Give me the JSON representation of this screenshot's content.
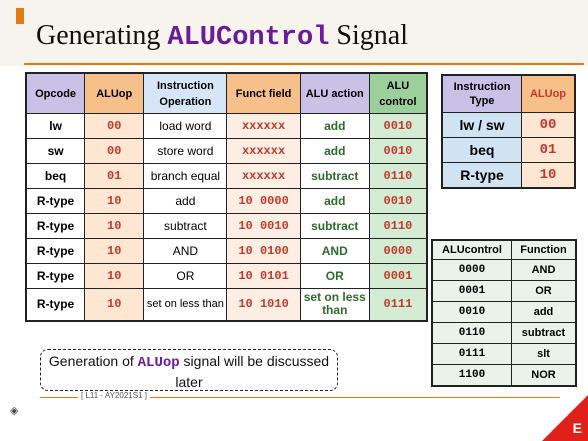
{
  "title": {
    "prefix": "Generating ",
    "code": "ALUControl",
    "suffix": " Signal"
  },
  "main_table": {
    "headers": [
      "Opcode",
      "ALUop",
      "Instruction Operation",
      "Funct field",
      "ALU action",
      "ALU control"
    ],
    "rows": [
      {
        "opcode": "lw",
        "aluop": "00",
        "operation": "load word",
        "funct": "xxxxxx",
        "action": "add",
        "control": "0010"
      },
      {
        "opcode": "sw",
        "aluop": "00",
        "operation": "store word",
        "funct": "xxxxxx",
        "action": "add",
        "control": "0010"
      },
      {
        "opcode": "beq",
        "aluop": "01",
        "operation": "branch equal",
        "funct": "xxxxxx",
        "action": "subtract",
        "control": "0110"
      },
      {
        "opcode": "R-type",
        "aluop": "10",
        "operation": "add",
        "funct": "10 0000",
        "action": "add",
        "control": "0010"
      },
      {
        "opcode": "R-type",
        "aluop": "10",
        "operation": "subtract",
        "funct": "10 0010",
        "action": "subtract",
        "control": "0110"
      },
      {
        "opcode": "R-type",
        "aluop": "10",
        "operation": "AND",
        "funct": "10 0100",
        "action": "AND",
        "control": "0000"
      },
      {
        "opcode": "R-type",
        "aluop": "10",
        "operation": "OR",
        "funct": "10 0101",
        "action": "OR",
        "control": "0001"
      },
      {
        "opcode": "R-type",
        "aluop": "10",
        "operation": "set on less than",
        "funct": "10 1010",
        "action": "set on less than",
        "control": "0111"
      }
    ]
  },
  "type_table": {
    "headers": [
      "Instruction Type",
      "ALUop"
    ],
    "rows": [
      {
        "type": "lw / sw",
        "aluop": "00"
      },
      {
        "type": "beq",
        "aluop": "01"
      },
      {
        "type": "R-type",
        "aluop": "10"
      }
    ]
  },
  "control_table": {
    "headers": [
      "ALUcontrol",
      "Function"
    ],
    "rows": [
      {
        "code": "0000",
        "function": "AND"
      },
      {
        "code": "0001",
        "function": "OR"
      },
      {
        "code": "0010",
        "function": "add"
      },
      {
        "code": "0110",
        "function": "subtract"
      },
      {
        "code": "0111",
        "function": "slt"
      },
      {
        "code": "1100",
        "function": "NOR"
      }
    ]
  },
  "note": {
    "prefix": "Generation of ",
    "code": "ALUop",
    "suffix": " signal will be discussed later"
  },
  "footer": {
    "text": "[ L11 - AY2021S1 ]"
  },
  "corner_letter": "E"
}
